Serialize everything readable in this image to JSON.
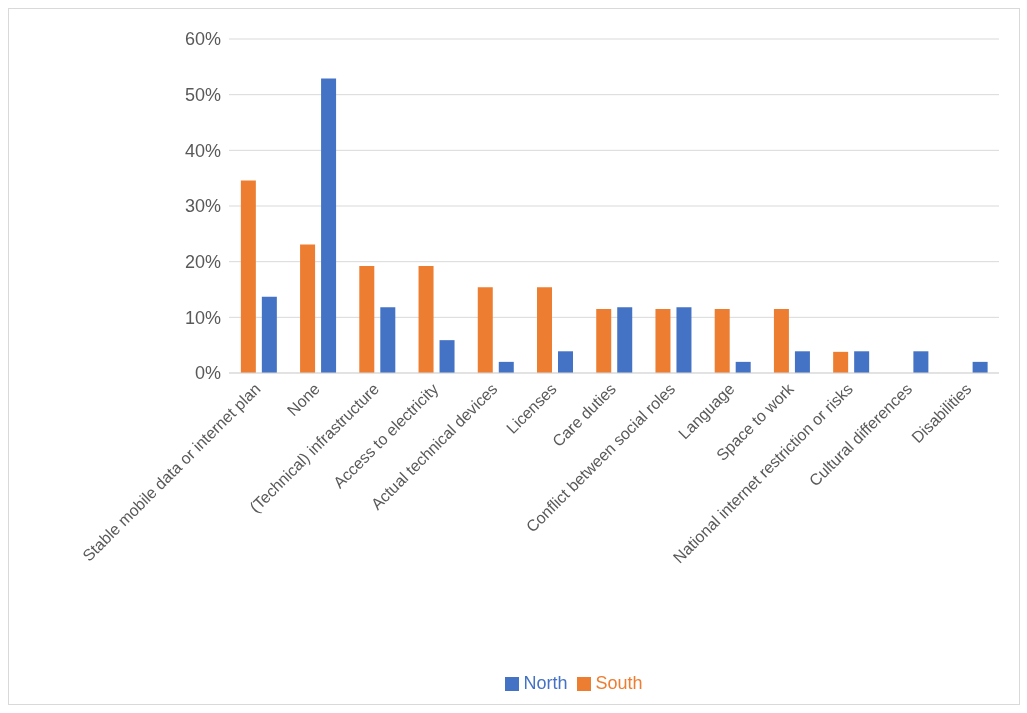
{
  "chart_data": {
    "type": "bar",
    "categories": [
      "Stable mobile data or internet plan",
      "None",
      "(Technical) infrastructure",
      "Access to electricity",
      "Actual technical devices",
      "Licenses",
      "Care duties",
      "Conflict between social roles",
      "Language",
      "Space to work",
      "National internet restriction or risks",
      "Cultural differences",
      "Disabilities"
    ],
    "series": [
      {
        "name": "South",
        "color": "#ed7d31",
        "values": [
          34.6,
          23.1,
          19.2,
          19.2,
          15.4,
          15.4,
          11.5,
          11.5,
          11.5,
          11.5,
          3.8,
          0,
          0
        ]
      },
      {
        "name": "North",
        "color": "#4472c4",
        "values": [
          13.7,
          52.9,
          11.8,
          5.9,
          2.0,
          3.9,
          11.8,
          11.8,
          2.0,
          3.9,
          3.9,
          3.9,
          2.0
        ]
      }
    ],
    "ylim": [
      0,
      60
    ],
    "yticks": [
      {
        "value": 0,
        "label": "0%"
      },
      {
        "value": 10,
        "label": "10%"
      },
      {
        "value": 20,
        "label": "20%"
      },
      {
        "value": 30,
        "label": "30%"
      },
      {
        "value": 40,
        "label": "40%"
      },
      {
        "value": 50,
        "label": "50%"
      },
      {
        "value": 60,
        "label": "60%"
      }
    ],
    "grid": "y",
    "legend": "bottom"
  }
}
